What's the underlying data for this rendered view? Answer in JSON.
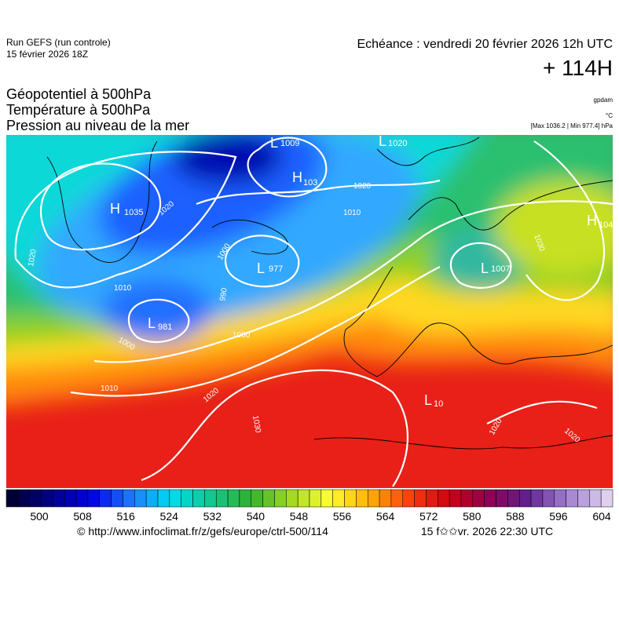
{
  "header": {
    "run": "Run GEFS (run controle)",
    "run_date": "15 février 2026 18Z",
    "valid": "Echéance : vendredi 20 février 2026 12h UTC",
    "lead": "+ 114H"
  },
  "titles": [
    "Géopotentiel à 500hPa",
    "Température à 500hPa",
    "Pression au niveau de la mer"
  ],
  "units": {
    "geopotential": "gpdam",
    "temperature": "°C",
    "pressure": "[Max 1036.2 | Min 977.4] hPa"
  },
  "map": {
    "centers": [
      {
        "symbol": "L",
        "value": "1009"
      },
      {
        "symbol": "L",
        "value": "1020"
      },
      {
        "symbol": "H",
        "value": "103"
      },
      {
        "symbol": "H",
        "value": "1035"
      },
      {
        "symbol": "L",
        "value": "977"
      },
      {
        "symbol": "L",
        "value": "1007"
      },
      {
        "symbol": "L",
        "value": "981"
      },
      {
        "symbol": "H",
        "value": "104"
      },
      {
        "symbol": "L",
        "value": "10"
      }
    ],
    "isobar_labels": [
      "1020",
      "1020",
      "1010",
      "1000",
      "990",
      "1010",
      "1000",
      "1020",
      "1030",
      "1020",
      "1030",
      "1020",
      "1020",
      "1010",
      "1000"
    ]
  },
  "colorbar": {
    "ticks": [
      500,
      508,
      516,
      524,
      532,
      540,
      548,
      556,
      564,
      572,
      580,
      588,
      596,
      604
    ],
    "colors": [
      "#000033",
      "#00008a",
      "#0000e6",
      "#1e78ff",
      "#00dcf0",
      "#10c890",
      "#30b030",
      "#a0d820",
      "#ffff30",
      "#ffb000",
      "#ff4010",
      "#d00010",
      "#900050",
      "#602090",
      "#a080d0",
      "#e0d0f0"
    ]
  },
  "footer": {
    "url": "© http://www.infoclimat.fr/z/gefs/europe/ctrl-500/114",
    "timestamp": "15 f✩✩vr. 2026 22:30 UTC"
  }
}
